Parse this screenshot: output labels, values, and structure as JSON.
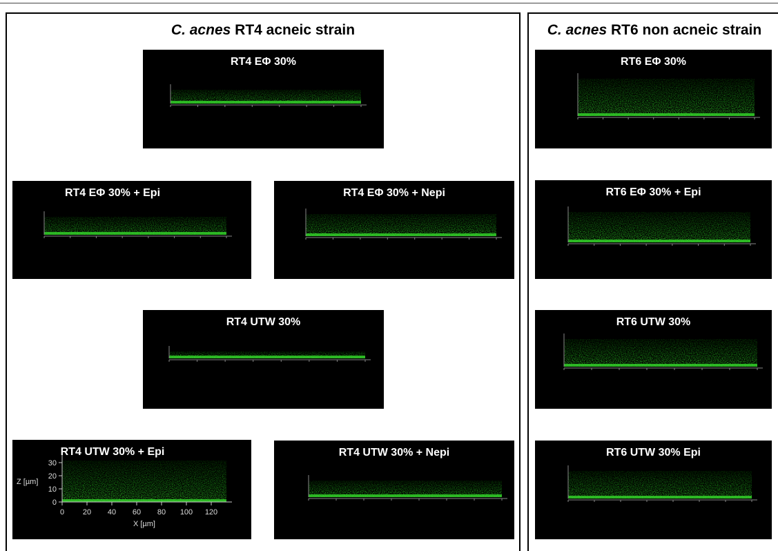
{
  "left_section": {
    "title_italic": "C. acnes",
    "title_rest": "RT4 acneic strain",
    "panels": [
      {
        "title": "RT4 EΦ 30%"
      },
      {
        "title": "RT4 EΦ 30% + Epi"
      },
      {
        "title": "RT4 EΦ 30% + Nepi"
      },
      {
        "title": "RT4 UTW 30%"
      },
      {
        "title": "RT4 UTW 30% + Epi"
      },
      {
        "title": "RT4 UTW 30% + Nepi"
      }
    ]
  },
  "right_section": {
    "title_italic": "C. acnes",
    "title_rest": "RT6 non acneic strain",
    "panels": [
      {
        "title": "RT6 EΦ 30%"
      },
      {
        "title": "RT6 EΦ 30% + Epi"
      },
      {
        "title": "RT6 UTW 30%"
      },
      {
        "title": "RT6 UTW 30% Epi"
      }
    ]
  },
  "detail_axes": {
    "z_label": "Z [µm]",
    "z_ticks": [
      0,
      10,
      20,
      30
    ],
    "x_label": "X [µm]",
    "x_ticks": [
      0,
      20,
      40,
      60,
      80,
      100,
      120
    ]
  }
}
